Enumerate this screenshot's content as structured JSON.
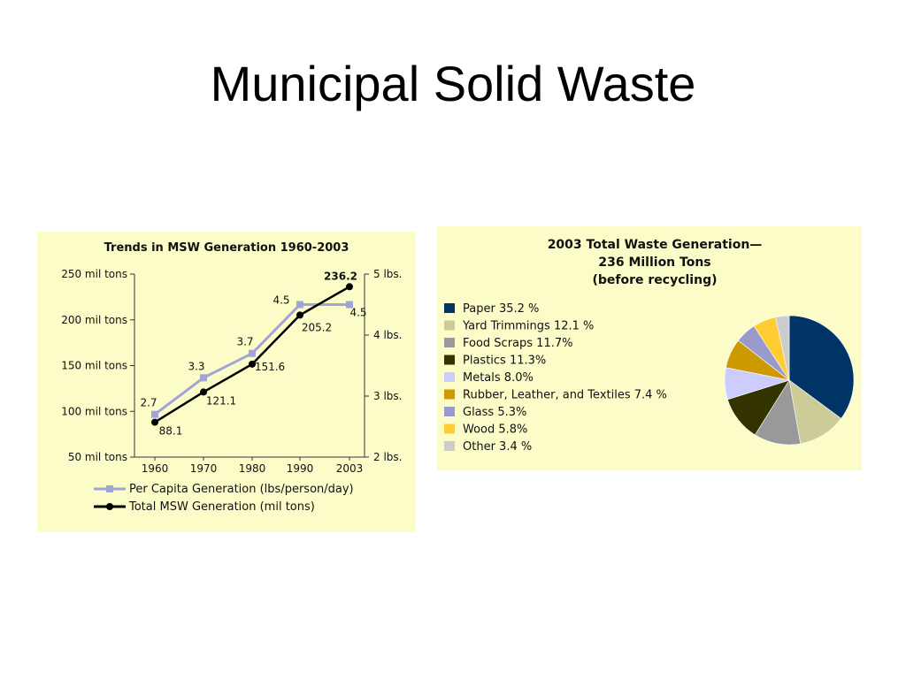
{
  "slide": {
    "title": "Municipal Solid Waste"
  },
  "colors": {
    "panel_bg": "#fcfcc8",
    "per_capita": "#a0a4d6",
    "total": "#000000"
  },
  "chart_data": [
    {
      "type": "line",
      "title": "Trends in MSW Generation 1960-2003",
      "categories": [
        "1960",
        "1970",
        "1980",
        "1990",
        "2003"
      ],
      "left_axis": {
        "ticks": [
          "250 mil tons",
          "200 mil tons",
          "150 mil tons",
          "100 mil tons",
          "50 mil tons"
        ],
        "values": [
          250,
          200,
          150,
          100,
          50
        ],
        "ylim": [
          50,
          250
        ]
      },
      "right_axis": {
        "ticks": [
          "5 lbs.",
          "4 lbs.",
          "3 lbs.",
          "2 lbs."
        ],
        "values": [
          5,
          4,
          3,
          2
        ],
        "ylim": [
          2,
          5
        ]
      },
      "series": [
        {
          "name": "Per Capita Generation (lbs/person/day)",
          "axis": "right",
          "values": [
            2.7,
            3.3,
            3.7,
            4.5,
            4.5
          ],
          "labels": [
            "2.7",
            "3.3",
            "3.7",
            "4.5",
            "4.5"
          ],
          "color": "#a0a4d6",
          "marker": "square"
        },
        {
          "name": "Total MSW Generation (mil tons)",
          "axis": "left",
          "values": [
            88.1,
            121.1,
            151.6,
            205.2,
            236.2
          ],
          "labels": [
            "88.1",
            "121.1",
            "151.6",
            "205.2",
            "236.2"
          ],
          "color": "#000000",
          "marker": "circle"
        }
      ]
    },
    {
      "type": "pie",
      "title": [
        "2003 Total Waste Generation—",
        "236 Million Tons",
        "(before recycling)"
      ],
      "slices": [
        {
          "label": "Paper  35.2 %",
          "value": 35.2,
          "color": "#003366"
        },
        {
          "label": "Yard Trimmings 12.1 %",
          "value": 12.1,
          "color": "#cccc99"
        },
        {
          "label": "Food Scraps 11.7%",
          "value": 11.7,
          "color": "#999999"
        },
        {
          "label": "Plastics  11.3%",
          "value": 11.3,
          "color": "#333300"
        },
        {
          "label": "Metals  8.0%",
          "value": 8.0,
          "color": "#ccccff"
        },
        {
          "label": "Rubber, Leather, and Textiles  7.4 %",
          "value": 7.4,
          "color": "#cc9900"
        },
        {
          "label": "Glass  5.3%",
          "value": 5.3,
          "color": "#9999cc"
        },
        {
          "label": "Wood  5.8%",
          "value": 5.8,
          "color": "#ffcc33"
        },
        {
          "label": "Other  3.4 %",
          "value": 3.4,
          "color": "#cccccc"
        }
      ]
    }
  ]
}
